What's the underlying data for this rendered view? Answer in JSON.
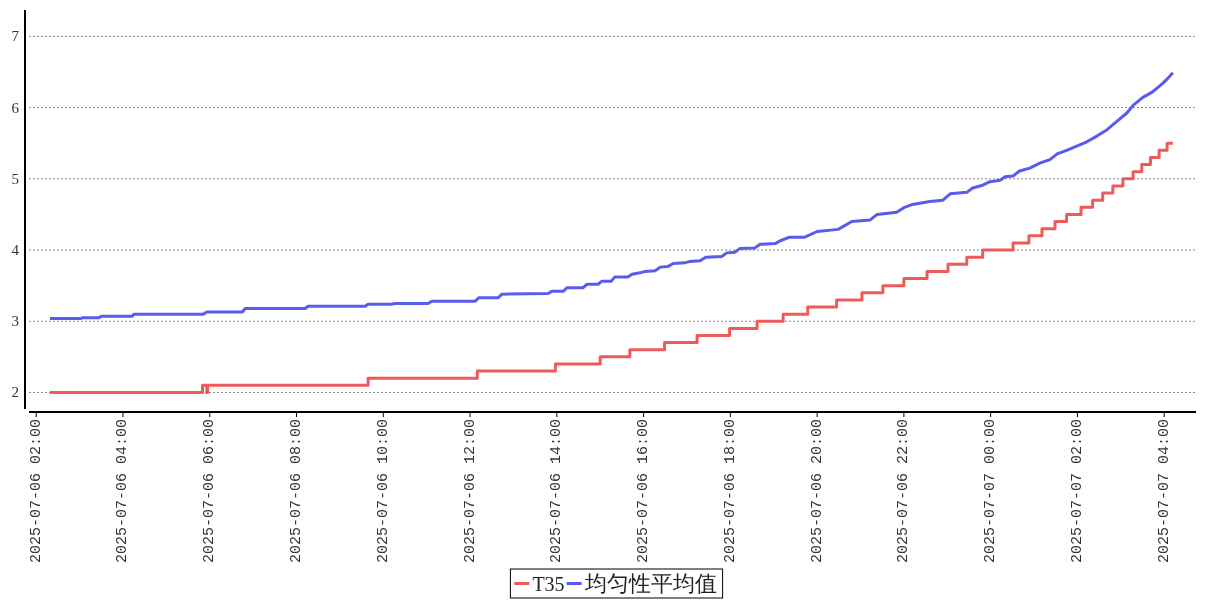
{
  "chart_data": {
    "type": "step",
    "xlim": [
      "2025-07-06T01:50",
      "2025-07-07T04:44"
    ],
    "ylim": [
      1.74,
      7.37
    ],
    "xticks": [
      {
        "value": "2025-07-06T02:00",
        "label": "2025-07-06 02:00"
      },
      {
        "value": "2025-07-06T04:00",
        "label": "2025-07-06 04:00"
      },
      {
        "value": "2025-07-06T06:00",
        "label": "2025-07-06 06:00"
      },
      {
        "value": "2025-07-06T08:00",
        "label": "2025-07-06 08:00"
      },
      {
        "value": "2025-07-06T10:00",
        "label": "2025-07-06 10:00"
      },
      {
        "value": "2025-07-06T12:00",
        "label": "2025-07-06 12:00"
      },
      {
        "value": "2025-07-06T14:00",
        "label": "2025-07-06 14:00"
      },
      {
        "value": "2025-07-06T16:00",
        "label": "2025-07-06 16:00"
      },
      {
        "value": "2025-07-06T18:00",
        "label": "2025-07-06 18:00"
      },
      {
        "value": "2025-07-06T20:00",
        "label": "2025-07-06 20:00"
      },
      {
        "value": "2025-07-06T22:00",
        "label": "2025-07-06 22:00"
      },
      {
        "value": "2025-07-07T00:00",
        "label": "2025-07-07 00:00"
      },
      {
        "value": "2025-07-07T02:00",
        "label": "2025-07-07 02:00"
      },
      {
        "value": "2025-07-07T04:00",
        "label": "2025-07-07 04:00"
      }
    ],
    "yticks": [
      2,
      3,
      4,
      5,
      6,
      7
    ],
    "grid": "y",
    "legend": "bottom",
    "line_style": "solid",
    "series": [
      {
        "name": "T35",
        "color": "#ee5a5a",
        "x": [
          "2025-07-06T02:19",
          "2025-07-06T05:50",
          "2025-07-06T05:56",
          "2025-07-06T05:57",
          "2025-07-06T09:39",
          "2025-07-06T12:10",
          "2025-07-06T13:58",
          "2025-07-06T15:00",
          "2025-07-06T15:41",
          "2025-07-06T16:29",
          "2025-07-06T17:14",
          "2025-07-06T17:59",
          "2025-07-06T18:37",
          "2025-07-06T19:13",
          "2025-07-06T19:47",
          "2025-07-06T20:27",
          "2025-07-06T21:02",
          "2025-07-06T21:31",
          "2025-07-06T22:00",
          "2025-07-06T22:32",
          "2025-07-06T23:01",
          "2025-07-06T23:27",
          "2025-07-06T23:49",
          "2025-07-07T00:31",
          "2025-07-07T00:53",
          "2025-07-07T01:11",
          "2025-07-07T01:29",
          "2025-07-07T01:45",
          "2025-07-07T02:05",
          "2025-07-07T02:21",
          "2025-07-07T02:35",
          "2025-07-07T02:49",
          "2025-07-07T03:03",
          "2025-07-07T03:17",
          "2025-07-07T03:29",
          "2025-07-07T03:41",
          "2025-07-07T03:53",
          "2025-07-07T04:04",
          "2025-07-07T04:12"
        ],
        "values": [
          2.0,
          2.1,
          2.0,
          2.1,
          2.2,
          2.3,
          2.4,
          2.5,
          2.6,
          2.7,
          2.8,
          2.9,
          3.0,
          3.1,
          3.2,
          3.3,
          3.4,
          3.5,
          3.6,
          3.7,
          3.8,
          3.9,
          4.0,
          4.1,
          4.2,
          4.3,
          4.4,
          4.5,
          4.6,
          4.7,
          4.8,
          4.9,
          5.0,
          5.1,
          5.2,
          5.3,
          5.4,
          5.5,
          5.5
        ]
      },
      {
        "name": "均匀性平均值",
        "color": "#5a5aee",
        "type": "line",
        "x": [
          "2025-07-06T02:19",
          "2025-07-06T03:02",
          "2025-07-06T03:05",
          "2025-07-06T03:27",
          "2025-07-06T03:30",
          "2025-07-06T04:13",
          "2025-07-06T04:15",
          "2025-07-06T05:51",
          "2025-07-06T05:56",
          "2025-07-06T06:45",
          "2025-07-06T06:49",
          "2025-07-06T08:12",
          "2025-07-06T08:16",
          "2025-07-06T09:35",
          "2025-07-06T09:39",
          "2025-07-06T10:12",
          "2025-07-06T10:16",
          "2025-07-06T11:02",
          "2025-07-06T11:07",
          "2025-07-06T12:07",
          "2025-07-06T12:12",
          "2025-07-06T12:39",
          "2025-07-06T12:44",
          "2025-07-06T13:48",
          "2025-07-06T13:53",
          "2025-07-06T14:09",
          "2025-07-06T14:14",
          "2025-07-06T14:36",
          "2025-07-06T14:42",
          "2025-07-06T14:57",
          "2025-07-06T15:02",
          "2025-07-06T15:15",
          "2025-07-06T15:20",
          "2025-07-06T15:38",
          "2025-07-06T15:44",
          "2025-07-06T15:55",
          "2025-07-06T16:02",
          "2025-07-06T16:16",
          "2025-07-06T16:23",
          "2025-07-06T16:34",
          "2025-07-06T16:41",
          "2025-07-06T16:57",
          "2025-07-06T17:04",
          "2025-07-06T17:18",
          "2025-07-06T17:26",
          "2025-07-06T17:48",
          "2025-07-06T17:55",
          "2025-07-06T18:06",
          "2025-07-06T18:13",
          "2025-07-06T18:34",
          "2025-07-06T18:41",
          "2025-07-06T19:02",
          "2025-07-06T19:09",
          "2025-07-06T19:22",
          "2025-07-06T19:43",
          "2025-07-06T20:00",
          "2025-07-06T20:29",
          "2025-07-06T20:48",
          "2025-07-06T21:13",
          "2025-07-06T21:23",
          "2025-07-06T21:50",
          "2025-07-06T22:01",
          "2025-07-06T22:12",
          "2025-07-06T22:36",
          "2025-07-06T22:54",
          "2025-07-06T23:04",
          "2025-07-06T23:27",
          "2025-07-06T23:35",
          "2025-07-06T23:49",
          "2025-07-06T23:59",
          "2025-07-07T00:13",
          "2025-07-07T00:20",
          "2025-07-07T00:31",
          "2025-07-07T00:40",
          "2025-07-07T00:54",
          "2025-07-07T01:08",
          "2025-07-07T01:22",
          "2025-07-07T01:32",
          "2025-07-07T01:45",
          "2025-07-07T01:59",
          "2025-07-07T02:13",
          "2025-07-07T02:27",
          "2025-07-07T02:41",
          "2025-07-07T02:55",
          "2025-07-07T03:08",
          "2025-07-07T03:17",
          "2025-07-07T03:30",
          "2025-07-07T03:44",
          "2025-07-07T03:58",
          "2025-07-07T04:05",
          "2025-07-07T04:12"
        ],
        "values": [
          3.04,
          3.04,
          3.05,
          3.05,
          3.07,
          3.07,
          3.1,
          3.1,
          3.13,
          3.13,
          3.18,
          3.18,
          3.21,
          3.21,
          3.24,
          3.24,
          3.25,
          3.25,
          3.28,
          3.28,
          3.33,
          3.33,
          3.38,
          3.39,
          3.42,
          3.42,
          3.47,
          3.47,
          3.52,
          3.52,
          3.56,
          3.56,
          3.62,
          3.62,
          3.66,
          3.68,
          3.7,
          3.71,
          3.76,
          3.77,
          3.81,
          3.82,
          3.84,
          3.85,
          3.9,
          3.91,
          3.96,
          3.97,
          4.02,
          4.03,
          4.08,
          4.09,
          4.13,
          4.18,
          4.18,
          4.26,
          4.29,
          4.4,
          4.42,
          4.5,
          4.53,
          4.6,
          4.64,
          4.68,
          4.7,
          4.79,
          4.81,
          4.87,
          4.91,
          4.96,
          4.98,
          5.03,
          5.04,
          5.11,
          5.15,
          5.22,
          5.27,
          5.35,
          5.4,
          5.46,
          5.52,
          5.6,
          5.69,
          5.81,
          5.92,
          6.03,
          6.14,
          6.22,
          6.34,
          6.41,
          6.49
        ]
      }
    ]
  }
}
